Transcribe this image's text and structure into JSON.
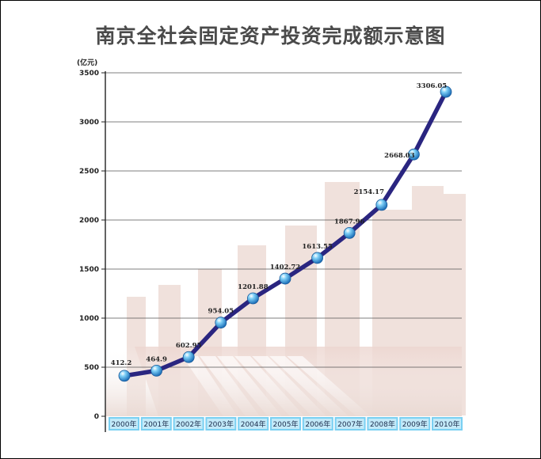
{
  "chart_data": {
    "type": "line",
    "title": "南京全社会固定资产投资完成额示意图",
    "unit_label": "(亿元)",
    "categories": [
      "2000年",
      "2001年",
      "2002年",
      "2003年",
      "2004年",
      "2005年",
      "2006年",
      "2007年",
      "2008年",
      "2009年",
      "2010年"
    ],
    "series": [
      {
        "values": [
          412.2,
          464.9,
          602.95,
          954.05,
          1201.88,
          1402.72,
          1613.55,
          1867.96,
          2154.17,
          2668.03,
          3306.05
        ]
      }
    ],
    "ylim": [
      0,
      3500
    ],
    "yticks": [
      0,
      500,
      1000,
      1500,
      2000,
      2500,
      3000,
      3500
    ],
    "grid": true,
    "colors": {
      "line": "#2a2580",
      "marker": "#3aa6e6",
      "xtick_bg": "#7ad0f2",
      "grid": "#555555"
    }
  }
}
